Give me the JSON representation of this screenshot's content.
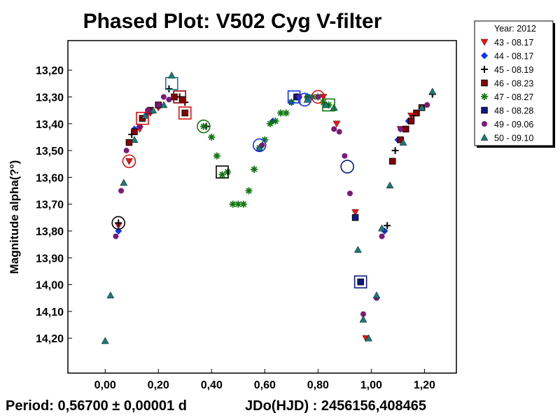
{
  "chart_data": {
    "type": "scatter",
    "title": "Phased Plot: V502 Cyg V-filter",
    "xlabel": "",
    "ylabel": "Magnitude alpha(?°)",
    "xlim": [
      -0.14,
      1.32
    ],
    "ylim": [
      14.33,
      13.09
    ],
    "y_inverted": true,
    "x_ticks": [
      "0,00",
      "0,20",
      "0,40",
      "0,60",
      "0,80",
      "1,00",
      "1,20"
    ],
    "x_tick_values": [
      0.0,
      0.2,
      0.4,
      0.6,
      0.8,
      1.0,
      1.2
    ],
    "y_ticks": [
      "13,20",
      "13,30",
      "13,40",
      "13,50",
      "13,60",
      "13,70",
      "13,80",
      "13,90",
      "14,00",
      "14,10",
      "14,20"
    ],
    "y_tick_values": [
      13.2,
      13.3,
      13.4,
      13.5,
      13.6,
      13.7,
      13.8,
      13.9,
      14.0,
      14.1,
      14.2
    ],
    "grid": false,
    "legend_position": "top-right-outside",
    "legend_title": "Year: 2012",
    "footer_period": "Period: 0,56700 ± 0,00001 d",
    "footer_epoch": "JDo(HJD) : 2456156,408465",
    "series": [
      {
        "name": "43 - 08.17",
        "marker": "triangle-down",
        "color": "#ee1111",
        "x": [
          0.05,
          0.09,
          0.13,
          0.17,
          0.2,
          0.82,
          0.87,
          0.94,
          0.98,
          1.11,
          1.15
        ],
        "y": [
          13.78,
          13.54,
          13.42,
          13.36,
          13.34,
          13.3,
          13.4,
          13.73,
          14.2,
          13.42,
          13.37
        ]
      },
      {
        "name": "44 - 08.17",
        "marker": "diamond",
        "color": "#1133ee",
        "x": [
          0.05,
          0.11,
          0.16,
          0.63,
          0.7,
          0.76,
          1.05,
          1.1,
          1.14
        ],
        "y": [
          13.8,
          13.42,
          13.36,
          13.39,
          13.32,
          13.3,
          13.8,
          13.46,
          13.39
        ]
      },
      {
        "name": "45 - 08.19",
        "marker": "plus",
        "color": "#000000",
        "x": [
          0.05,
          0.1,
          0.24,
          0.28,
          0.3,
          0.38,
          1.06,
          1.09,
          1.16,
          1.23
        ],
        "y": [
          13.77,
          13.44,
          13.27,
          13.3,
          13.32,
          13.41,
          13.78,
          13.5,
          13.37,
          13.29
        ]
      },
      {
        "name": "46 - 08.23",
        "marker": "square",
        "color": "#8b0000",
        "x": [
          0.09,
          0.11,
          0.14,
          0.17,
          0.2,
          0.26,
          0.29,
          0.3,
          1.08,
          1.11,
          1.13,
          1.15,
          1.17,
          1.19
        ],
        "y": [
          13.47,
          13.43,
          13.38,
          13.35,
          13.33,
          13.3,
          13.31,
          13.36,
          13.54,
          13.46,
          13.42,
          13.39,
          13.36,
          13.34
        ]
      },
      {
        "name": "47 - 08.27",
        "marker": "asterisk",
        "color": "#117711",
        "x": [
          0.37,
          0.4,
          0.42,
          0.44,
          0.46,
          0.48,
          0.5,
          0.52,
          0.54,
          0.56,
          0.58,
          0.6,
          0.62,
          0.64,
          0.66,
          0.68,
          0.7,
          0.72,
          0.76,
          0.78,
          0.8,
          0.82,
          0.84
        ],
        "y": [
          13.41,
          13.45,
          13.52,
          13.59,
          13.58,
          13.7,
          13.7,
          13.7,
          13.65,
          13.57,
          13.49,
          13.46,
          13.4,
          13.39,
          13.36,
          13.36,
          13.32,
          13.3,
          13.3,
          13.3,
          13.3,
          13.32,
          13.33
        ]
      },
      {
        "name": "48 - 08.28",
        "marker": "square",
        "color": "#0a1a8a",
        "x": [
          0.72,
          0.94,
          0.96
        ],
        "y": [
          13.3,
          13.75,
          13.99
        ]
      },
      {
        "name": "49 - 09.06",
        "marker": "circle",
        "color": "#7a1a7a",
        "x": [
          0.04,
          0.06,
          0.08,
          0.13,
          0.16,
          0.2,
          0.22,
          0.24,
          0.59,
          0.73,
          0.8,
          0.86,
          0.88,
          0.9,
          0.92,
          0.97,
          1.02,
          1.04,
          1.11,
          1.21
        ],
        "y": [
          13.82,
          13.65,
          13.5,
          13.41,
          13.35,
          13.33,
          13.3,
          13.31,
          13.48,
          13.3,
          13.3,
          13.42,
          13.43,
          13.52,
          13.66,
          14.11,
          14.05,
          13.82,
          13.42,
          13.33
        ]
      },
      {
        "name": "50 - 09.10",
        "marker": "triangle-up",
        "color": "#1a7a7a",
        "x": [
          0.0,
          0.02,
          0.07,
          0.11,
          0.15,
          0.18,
          0.22,
          0.25,
          0.58,
          0.76,
          0.83,
          0.86,
          0.95,
          0.97,
          0.99,
          1.02,
          1.04,
          1.07,
          1.12,
          1.19,
          1.23
        ],
        "y": [
          14.21,
          14.04,
          13.62,
          13.46,
          13.37,
          13.35,
          13.33,
          13.22,
          13.49,
          13.31,
          13.33,
          13.34,
          13.87,
          14.13,
          14.2,
          14.04,
          13.79,
          13.63,
          13.47,
          13.34,
          13.28
        ]
      }
    ],
    "highlights": [
      {
        "marker": "circle",
        "color": "#000000",
        "x": 0.05,
        "y": 13.77
      },
      {
        "marker": "circle",
        "color": "#dd1111",
        "x": 0.09,
        "y": 13.54
      },
      {
        "marker": "square",
        "color": "#dd1111",
        "x": 0.14,
        "y": 13.38
      },
      {
        "marker": "square",
        "color": "#1a7a7a",
        "x": 0.25,
        "y": 13.25
      },
      {
        "marker": "square",
        "color": "#8b0000",
        "x": 0.28,
        "y": 13.3
      },
      {
        "marker": "square",
        "color": "#dd1111",
        "x": 0.3,
        "y": 13.36
      },
      {
        "marker": "circle",
        "color": "#117711",
        "x": 0.37,
        "y": 13.41
      },
      {
        "marker": "square",
        "color": "#000000",
        "x": 0.44,
        "y": 13.58
      },
      {
        "marker": "circle",
        "color": "#1133ee",
        "x": 0.58,
        "y": 13.48
      },
      {
        "marker": "square",
        "color": "#1133ee",
        "x": 0.71,
        "y": 13.3
      },
      {
        "marker": "circle",
        "color": "#1133ee",
        "x": 0.75,
        "y": 13.31
      },
      {
        "marker": "circle",
        "color": "#dd1111",
        "x": 0.8,
        "y": 13.3
      },
      {
        "marker": "square",
        "color": "#117711",
        "x": 0.84,
        "y": 13.33
      },
      {
        "marker": "circle",
        "color": "#0a1a8a",
        "x": 0.91,
        "y": 13.56
      },
      {
        "marker": "square",
        "color": "#0a1a8a",
        "x": 0.96,
        "y": 13.99
      }
    ]
  }
}
